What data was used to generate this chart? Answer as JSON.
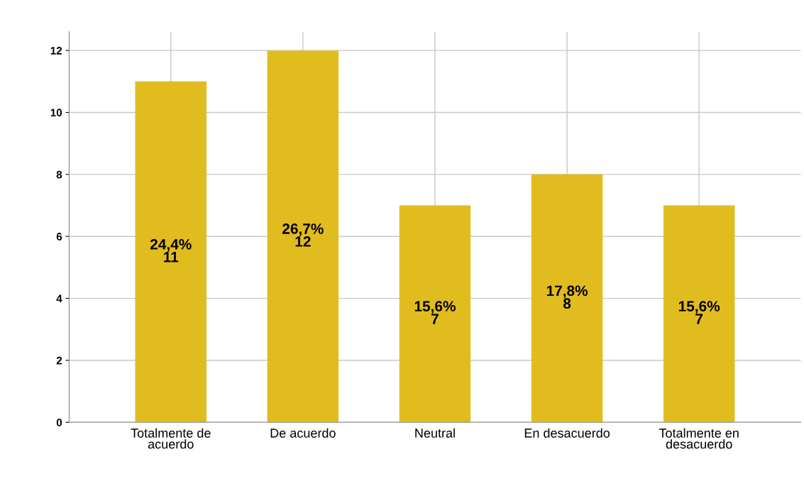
{
  "chart_data": {
    "type": "bar",
    "categories": [
      "Totalmente de\nacuerdo",
      "De acuerdo",
      "Neutral",
      "En desacuerdo",
      "Totalmente en\ndesacuerdo"
    ],
    "values": [
      11,
      12,
      7,
      8,
      7
    ],
    "value_labels": [
      "24,4%\n11",
      "26,7%\n12",
      "15,6%\n7",
      "17,8%\n8",
      "15,6%\n7"
    ],
    "color": "#e1bc1f",
    "ylim": [
      0,
      12.6
    ],
    "yticks": [
      0,
      2,
      4,
      6,
      8,
      10,
      12
    ],
    "grid": true
  }
}
